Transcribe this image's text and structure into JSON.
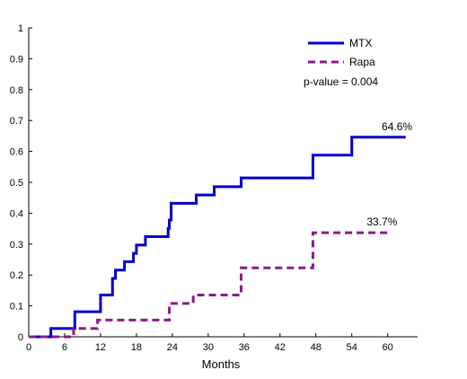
{
  "chart_data": {
    "type": "line",
    "title": "",
    "xlabel": "Months",
    "ylabel": "",
    "xlim": [
      0,
      65
    ],
    "ylim": [
      0,
      1
    ],
    "xticks": [
      0,
      6,
      12,
      18,
      24,
      30,
      36,
      42,
      48,
      54,
      60
    ],
    "yticks": [
      0,
      0.1,
      0.2,
      0.3,
      0.4,
      0.5,
      0.6,
      0.7,
      0.8,
      0.9,
      1
    ],
    "ytick_labels": [
      "0",
      "0.1",
      "0.2",
      "0.3",
      "0.4",
      "0.5",
      "0.6",
      "0.7",
      "0.8",
      "0.9",
      "1"
    ],
    "grid": false,
    "legend_position": "top-right",
    "series": [
      {
        "name": "MTX",
        "style": "solid",
        "color": "#0000cc",
        "step": true,
        "x": [
          0,
          3.7,
          7.7,
          12.0,
          14.0,
          14.5,
          16.0,
          17.5,
          18.0,
          19.5,
          23.3,
          23.5,
          23.8,
          28.0,
          31.0,
          35.5,
          47.5,
          54.0,
          63.0
        ],
        "y": [
          0,
          0.027,
          0.081,
          0.135,
          0.189,
          0.216,
          0.243,
          0.27,
          0.297,
          0.324,
          0.351,
          0.378,
          0.432,
          0.459,
          0.486,
          0.514,
          0.588,
          0.646,
          0.646
        ]
      },
      {
        "name": "Rapa",
        "style": "dashed",
        "color": "#8b1a8b",
        "step": true,
        "x": [
          0,
          7.5,
          11.5,
          23.5,
          27.5,
          35.5,
          47.5,
          60.0
        ],
        "y": [
          0,
          0.027,
          0.054,
          0.108,
          0.135,
          0.223,
          0.337,
          0.337
        ]
      }
    ],
    "annotations": [
      {
        "text": "64.6%",
        "x": 59.0,
        "y": 0.646,
        "series": "MTX"
      },
      {
        "text": "33.7%",
        "x": 56.5,
        "y": 0.337,
        "series": "Rapa"
      }
    ],
    "legend_note": "p-value = 0.004"
  }
}
